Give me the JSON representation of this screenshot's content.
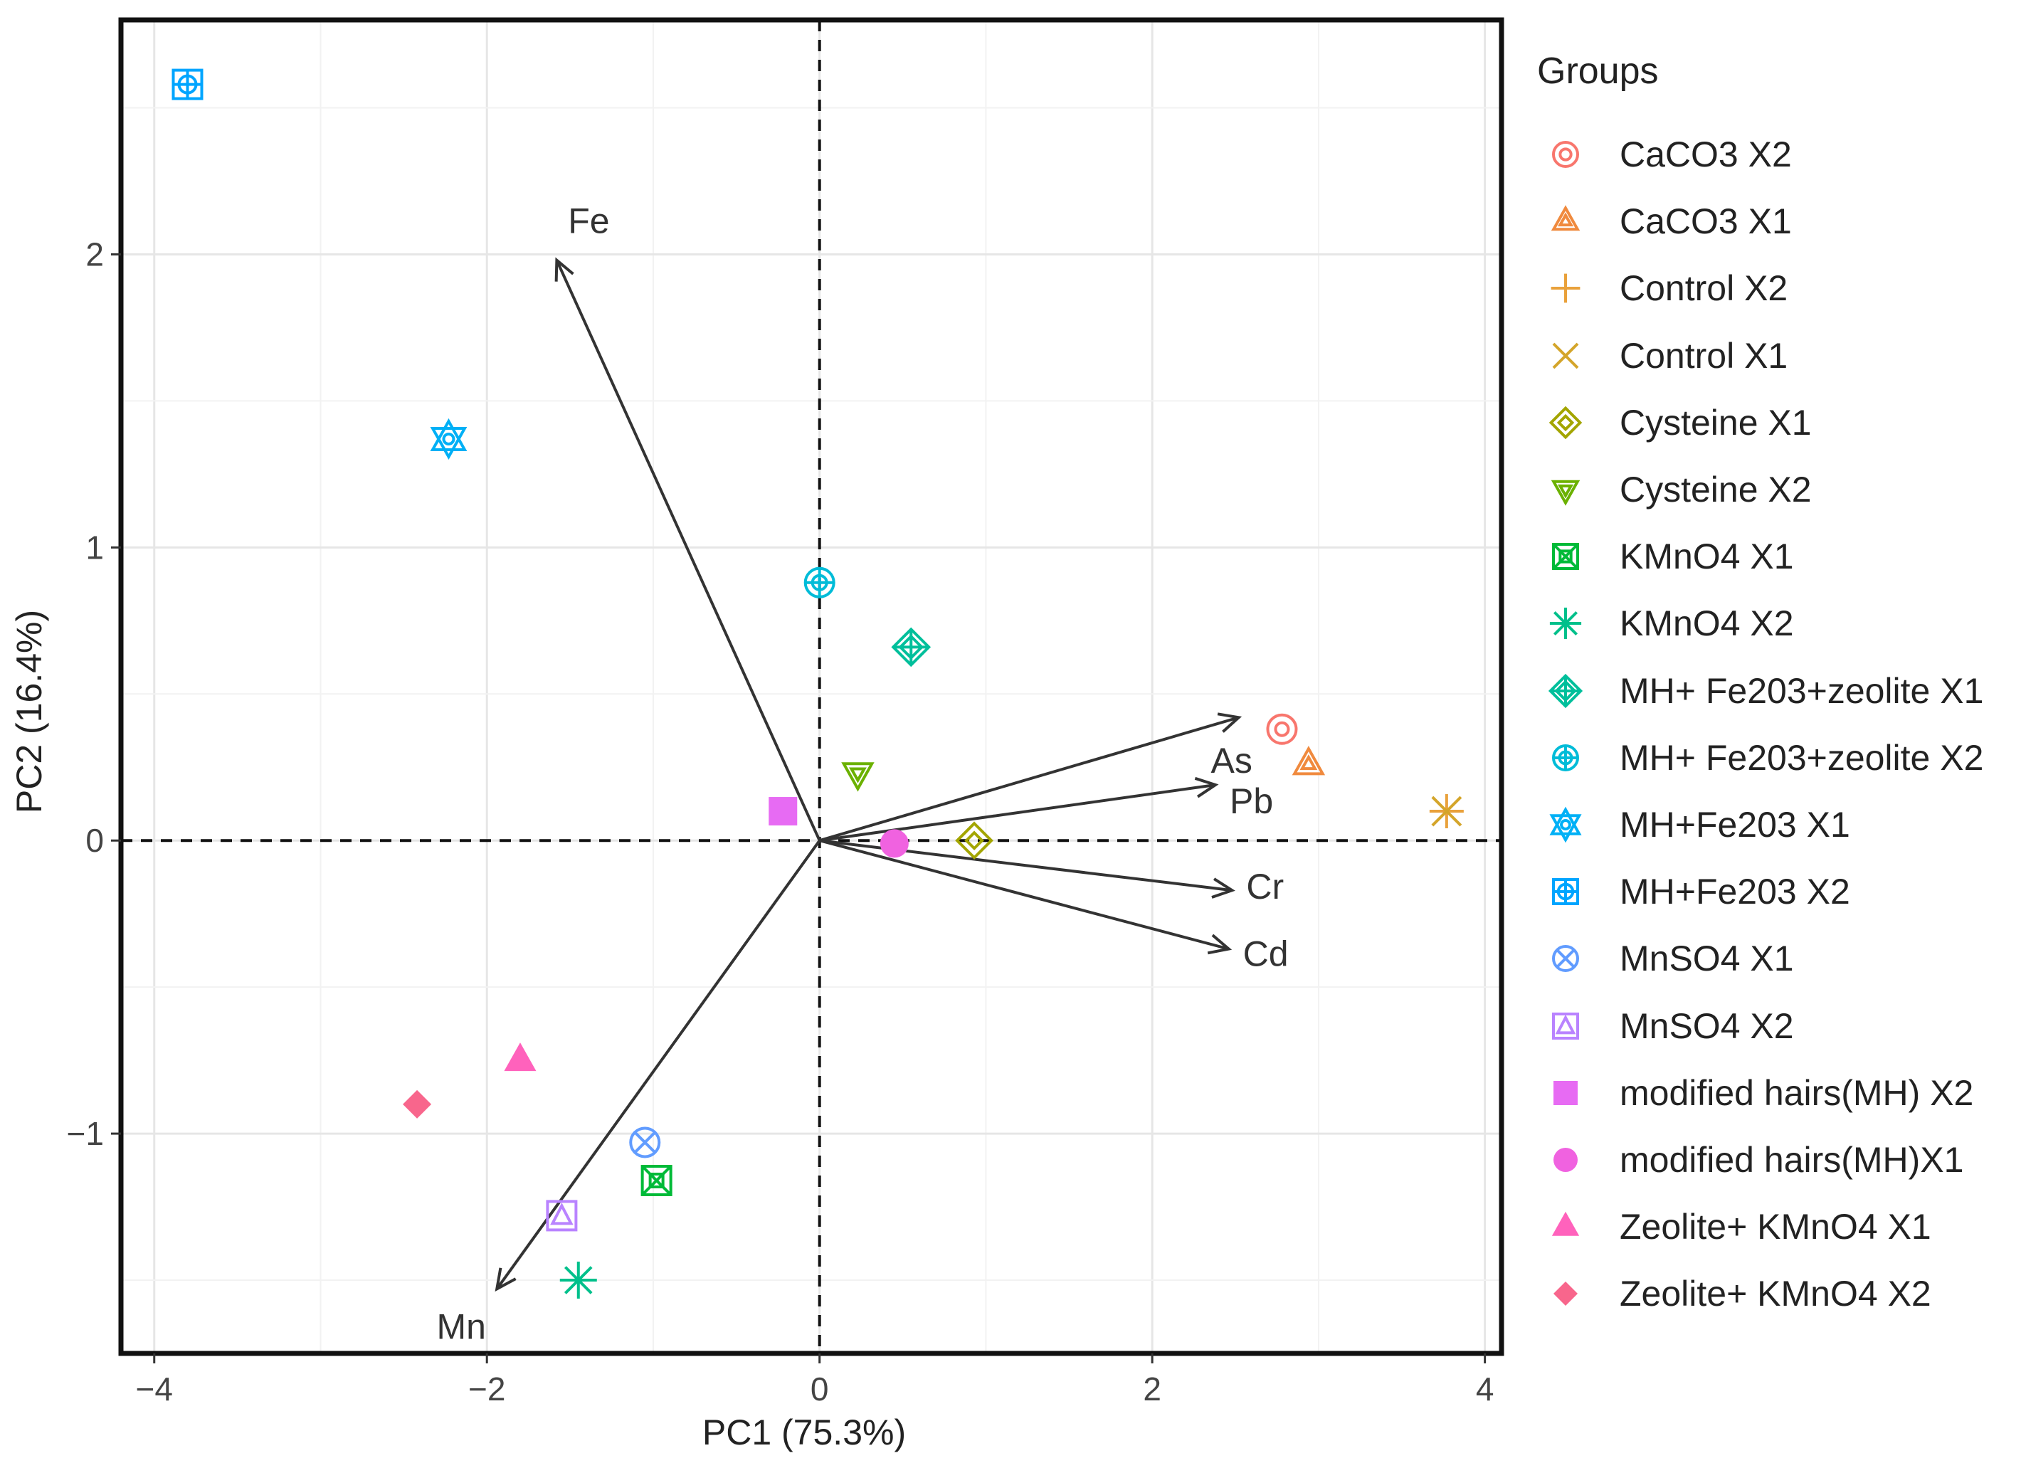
{
  "chart_data": {
    "type": "scatter",
    "subtype": "pca-biplot",
    "xlabel": "PC1 (75.3%)",
    "ylabel": "PC2 (16.4%)",
    "xlim": [
      -4.2,
      4.1
    ],
    "ylim": [
      -1.75,
      2.8
    ],
    "xticks": [
      -4,
      -2,
      0,
      2,
      4
    ],
    "yticks": [
      -1,
      0,
      1,
      2
    ],
    "xtick_labels": [
      "−4",
      "−2",
      "0",
      "2",
      "4"
    ],
    "ytick_labels": [
      "−1",
      "0",
      "1",
      "2"
    ],
    "grid": true,
    "reference_lines": {
      "x": 0,
      "y": 0,
      "style": "dashed"
    },
    "legend": {
      "title": "Groups",
      "placement": "right"
    },
    "series": [
      {
        "name": "CaCO3  X2",
        "color": "#F8766D",
        "shape": "circle-double",
        "points": [
          [
            2.78,
            0.38
          ]
        ]
      },
      {
        "name": "CaCO3 X1",
        "color": "#F08A3E",
        "shape": "triangle-double",
        "points": [
          [
            2.94,
            0.26
          ]
        ]
      },
      {
        "name": "Control  X2",
        "color": "#E9A13B",
        "shape": "plus",
        "points": [
          [
            3.77,
            0.1
          ]
        ]
      },
      {
        "name": "Control X1",
        "color": "#D4A52A",
        "shape": "cross",
        "points": [
          [
            3.77,
            0.1
          ]
        ]
      },
      {
        "name": "Cysteine X1",
        "color": "#A3A500",
        "shape": "diamond-double",
        "points": [
          [
            0.93,
            0.0
          ]
        ]
      },
      {
        "name": "Cysteine X2",
        "color": "#6BB100",
        "shape": "triangle-down-double",
        "points": [
          [
            0.23,
            0.23
          ]
        ]
      },
      {
        "name": "KMnO4 X1",
        "color": "#00BA38",
        "shape": "square-cross",
        "points": [
          [
            -0.98,
            -1.16
          ]
        ]
      },
      {
        "name": "KMnO4 X2",
        "color": "#00C08B",
        "shape": "asterisk",
        "points": [
          [
            -1.45,
            -1.5
          ]
        ]
      },
      {
        "name": "MH+ Fe203+zeolite X1",
        "color": "#00BF9B",
        "shape": "diamond-plus",
        "points": [
          [
            0.55,
            0.66
          ]
        ]
      },
      {
        "name": "MH+ Fe203+zeolite X2",
        "color": "#00BCD8",
        "shape": "circle-plus",
        "points": [
          [
            0.0,
            0.88
          ]
        ]
      },
      {
        "name": "MH+Fe203 X1",
        "color": "#00B0F6",
        "shape": "star-david",
        "points": [
          [
            -2.23,
            1.37
          ]
        ]
      },
      {
        "name": "MH+Fe203 X2",
        "color": "#00A5FF",
        "shape": "square-plus",
        "points": [
          [
            -3.8,
            2.58
          ]
        ]
      },
      {
        "name": "MnSO4 X1",
        "color": "#619CFF",
        "shape": "circle-cross",
        "points": [
          [
            -1.05,
            -1.03
          ]
        ]
      },
      {
        "name": "MnSO4 X2",
        "color": "#B983FF",
        "shape": "square-triangle",
        "points": [
          [
            -1.55,
            -1.28
          ]
        ]
      },
      {
        "name": "modified hairs(MH) X2",
        "color": "#E76BF3",
        "shape": "square-filled",
        "points": [
          [
            -0.22,
            0.1
          ]
        ]
      },
      {
        "name": "modified hairs(MH)X1",
        "color": "#F062E0",
        "shape": "circle-filled",
        "points": [
          [
            0.45,
            -0.01
          ]
        ]
      },
      {
        "name": "Zeolite+ KMnO4 X1",
        "color": "#FF62BC",
        "shape": "triangle-filled",
        "points": [
          [
            -1.8,
            -0.75
          ]
        ]
      },
      {
        "name": "Zeolite+ KMnO4 X2",
        "color": "#F8668C",
        "shape": "diamond-filled",
        "points": [
          [
            -2.42,
            -0.9
          ]
        ]
      }
    ],
    "loadings": [
      {
        "name": "Fe",
        "x": -1.58,
        "y": 1.98
      },
      {
        "name": "As",
        "x": 2.52,
        "y": 0.42
      },
      {
        "name": "Pb",
        "x": 2.38,
        "y": 0.19
      },
      {
        "name": "Cr",
        "x": 2.48,
        "y": -0.17
      },
      {
        "name": "Cd",
        "x": 2.46,
        "y": -0.37
      },
      {
        "name": "Mn",
        "x": -1.94,
        "y": -1.53
      }
    ]
  }
}
